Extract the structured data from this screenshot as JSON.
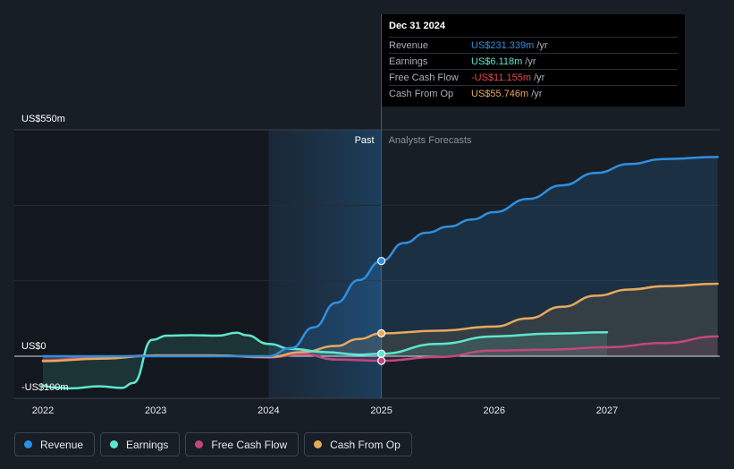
{
  "chart_data": {
    "type": "area",
    "title": "",
    "xlabel": "",
    "ylabel": "",
    "x_ticks": [
      "2022",
      "2023",
      "2024",
      "2025",
      "2026",
      "2027"
    ],
    "y_labels": [
      {
        "label": "US$550m",
        "value": 550
      },
      {
        "label": "US$0",
        "value": 0
      },
      {
        "label": "-US$100m",
        "value": -100
      }
    ],
    "ylim": [
      -100,
      550
    ],
    "xlim": [
      2021.78,
      2027.98
    ],
    "past_start": 2024.0,
    "divider_x": 2025.0,
    "past_label": "Past",
    "forecast_label": "Analysts Forecasts",
    "series": [
      {
        "name": "Revenue",
        "color": "#2f8fe0",
        "points": [
          [
            2022,
            0
          ],
          [
            2022.5,
            0
          ],
          [
            2023,
            0
          ],
          [
            2023.5,
            0
          ],
          [
            2024.0,
            0
          ],
          [
            2024.2,
            20
          ],
          [
            2024.4,
            70
          ],
          [
            2024.6,
            130
          ],
          [
            2024.8,
            185
          ],
          [
            2025.0,
            231.339
          ],
          [
            2025.2,
            275
          ],
          [
            2025.4,
            300
          ],
          [
            2025.6,
            315
          ],
          [
            2025.8,
            332
          ],
          [
            2026.0,
            350
          ],
          [
            2026.3,
            382
          ],
          [
            2026.6,
            415
          ],
          [
            2026.9,
            445
          ],
          [
            2027.2,
            467
          ],
          [
            2027.5,
            479
          ],
          [
            2027.98,
            484
          ]
        ]
      },
      {
        "name": "Earnings",
        "color": "#5ee6cf",
        "points": [
          [
            2022,
            -72
          ],
          [
            2022.1,
            -76
          ],
          [
            2022.25,
            -78
          ],
          [
            2022.5,
            -73
          ],
          [
            2022.7,
            -77
          ],
          [
            2022.8,
            -65
          ],
          [
            2022.97,
            40
          ],
          [
            2023.1,
            50
          ],
          [
            2023.3,
            51
          ],
          [
            2023.55,
            50
          ],
          [
            2023.72,
            57
          ],
          [
            2023.8,
            51
          ],
          [
            2024.0,
            30
          ],
          [
            2024.2,
            18
          ],
          [
            2024.5,
            10
          ],
          [
            2024.8,
            4
          ],
          [
            2025.0,
            6.118
          ],
          [
            2025.5,
            30
          ],
          [
            2026.0,
            48
          ],
          [
            2026.5,
            55
          ],
          [
            2027.0,
            58
          ]
        ]
      },
      {
        "name": "Free Cash Flow",
        "color": "#c2477d",
        "points": [
          [
            2022,
            -10
          ],
          [
            2022.5,
            -2
          ],
          [
            2023,
            2
          ],
          [
            2023.5,
            2
          ],
          [
            2024.0,
            -3
          ],
          [
            2024.3,
            5
          ],
          [
            2024.6,
            -8
          ],
          [
            2025.0,
            -11.155
          ],
          [
            2025.5,
            -2
          ],
          [
            2026.0,
            14
          ],
          [
            2026.5,
            16
          ],
          [
            2027.0,
            22
          ],
          [
            2027.5,
            32
          ],
          [
            2027.98,
            48
          ]
        ]
      },
      {
        "name": "Cash From Op",
        "color": "#e6a95c",
        "points": [
          [
            2022,
            -12
          ],
          [
            2022.5,
            -6
          ],
          [
            2023,
            2
          ],
          [
            2023.5,
            2
          ],
          [
            2024.0,
            -2
          ],
          [
            2024.3,
            10
          ],
          [
            2024.6,
            25
          ],
          [
            2024.8,
            42
          ],
          [
            2025.0,
            55.746
          ],
          [
            2025.5,
            62
          ],
          [
            2026.0,
            72
          ],
          [
            2026.3,
            92
          ],
          [
            2026.6,
            120
          ],
          [
            2026.9,
            147
          ],
          [
            2027.2,
            162
          ],
          [
            2027.5,
            170
          ],
          [
            2027.98,
            176
          ]
        ]
      }
    ],
    "markers": [
      {
        "series": "Revenue",
        "x": 2025.0,
        "y": 231.339
      },
      {
        "series": "Cash From Op",
        "x": 2025.0,
        "y": 55.746
      },
      {
        "series": "Earnings",
        "x": 2025.0,
        "y": 6.118
      },
      {
        "series": "Free Cash Flow",
        "x": 2025.0,
        "y": -11.155
      }
    ]
  },
  "tooltip": {
    "date": "Dec 31 2024",
    "unit": "/yr",
    "rows": [
      {
        "label": "Revenue",
        "value": "US$231.339m",
        "color": "#2f8fe0"
      },
      {
        "label": "Earnings",
        "value": "US$6.118m",
        "color": "#5ee6cf"
      },
      {
        "label": "Free Cash Flow",
        "value": "-US$11.155m",
        "color": "#e5484d"
      },
      {
        "label": "Cash From Op",
        "value": "US$55.746m",
        "color": "#e6a95c"
      }
    ]
  },
  "legend": [
    {
      "label": "Revenue",
      "color": "#2f8fe0"
    },
    {
      "label": "Earnings",
      "color": "#5ee6cf"
    },
    {
      "label": "Free Cash Flow",
      "color": "#c2477d"
    },
    {
      "label": "Cash From Op",
      "color": "#e6a95c"
    }
  ]
}
